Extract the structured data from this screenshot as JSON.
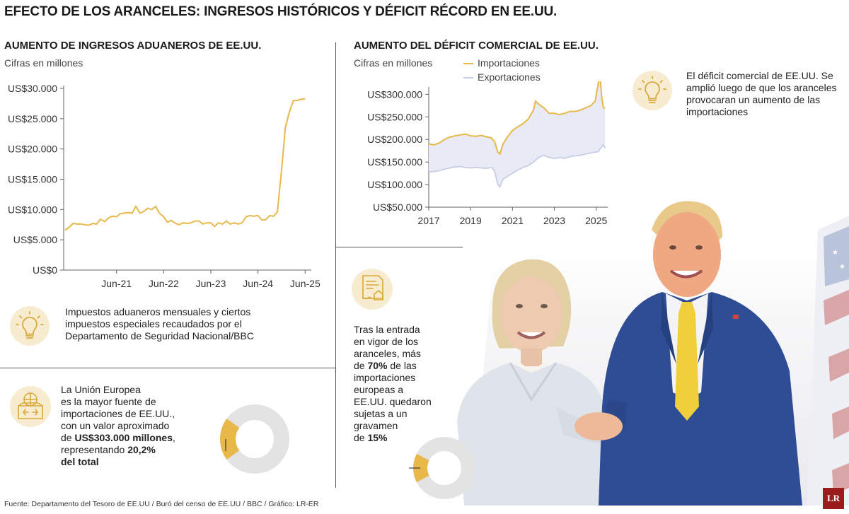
{
  "title": "EFECTO DE LOS ARANCELES: INGRESOS HISTÓRICOS Y DÉFICIT RÉCORD EN EE.UU.",
  "colors": {
    "accent": "#e8b84a",
    "exports_fill": "#e8ebf5",
    "exports_line": "#c8cde6",
    "axis": "#666",
    "ring": "#e3e3e3"
  },
  "left_chart": {
    "title": "AUMENTO DE INGRESOS ADUANEROS DE EE.UU.",
    "subtitle": "Cifras en millones",
    "note": "Impuestos aduaneros mensuales y ciertos impuestos especiales recaudados por el Departamento de Seguridad Nacional/BBC",
    "icon": "lightbulb-icon"
  },
  "right_chart": {
    "title": "AUMENTO DEL DÉFICIT COMERCIAL DE EE.UU.",
    "subtitle": "Cifras en millones",
    "legend_imports": "Importaciones",
    "legend_exports": "Exportaciones",
    "note": "El déficit comercial de EE.UU. Se amplió luego de que los aranceles provocaran un aumento de las importaciones",
    "icon": "lightbulb-icon"
  },
  "eu_box": {
    "icon": "globe-box-icon",
    "line1": "La Unión Europea",
    "line2": "es la mayor fuente de",
    "line3": "importaciones de EE.UU.,",
    "line4": "con un valor aproximado",
    "line5_pre": "de ",
    "line5_bold": "US$303.000 millones",
    "line5_post": ",",
    "line6_pre": "representando ",
    "line6_bold": "20,2%",
    "line7_bold": "del total",
    "share": 0.202
  },
  "tariff_box": {
    "icon": "document-icon",
    "l1": "Tras la entrada",
    "l2": "en vigor de los",
    "l3": "aranceles, más",
    "l4_pre": "de ",
    "l4_bold": "70%",
    "l4_post": " de las",
    "l5": "importaciones",
    "l6": "europeas a",
    "l7": "EE.UU. quedaron",
    "l8": "sujetas a un",
    "l9": "gravamen",
    "l10_pre": "de ",
    "l10_bold": "15%",
    "share": 0.15
  },
  "source": "Fuente: Departamento del Tesoro de EE.UU / Buró del censo de EE.UU / BBC / Gráfico: LR-ER",
  "logo": "LR",
  "chart_data": [
    {
      "type": "line",
      "title": "AUMENTO DE INGRESOS ADUANEROS DE EE.UU.",
      "ylabel": "Cifras en millones",
      "xlim": [
        2020.3,
        2025.55
      ],
      "ylim": [
        0,
        30000
      ],
      "y_ticks": [
        0,
        5000,
        10000,
        15000,
        20000,
        25000,
        30000
      ],
      "y_tick_labels": [
        "US$0",
        "US$5.000",
        "US$10.000",
        "US$15.000",
        "US$20.000",
        "US$25.000",
        "US$30.000"
      ],
      "x_ticks": [
        2021.42,
        2022.42,
        2023.42,
        2024.42,
        2025.42
      ],
      "x_tick_labels": [
        "Jun-21",
        "Jun-22",
        "Jun-23",
        "Jun-24",
        "Jun-25"
      ],
      "series": [
        {
          "color": "#e8b84a",
          "x": [
            2020.33,
            2020.42,
            2020.5,
            2020.58,
            2020.67,
            2020.75,
            2020.83,
            2020.92,
            2021.0,
            2021.08,
            2021.17,
            2021.25,
            2021.33,
            2021.42,
            2021.5,
            2021.58,
            2021.67,
            2021.75,
            2021.83,
            2021.92,
            2022.0,
            2022.08,
            2022.17,
            2022.25,
            2022.33,
            2022.42,
            2022.5,
            2022.58,
            2022.67,
            2022.75,
            2022.83,
            2022.92,
            2023.0,
            2023.08,
            2023.17,
            2023.25,
            2023.33,
            2023.42,
            2023.5,
            2023.58,
            2023.67,
            2023.75,
            2023.83,
            2023.92,
            2024.0,
            2024.08,
            2024.17,
            2024.25,
            2024.33,
            2024.42,
            2024.5,
            2024.58,
            2024.67,
            2024.75,
            2024.83,
            2024.92,
            2025.0,
            2025.08,
            2025.17,
            2025.25,
            2025.33,
            2025.42
          ],
          "y": [
            6600,
            7100,
            7700,
            7600,
            7600,
            7500,
            7400,
            7700,
            7600,
            8400,
            8000,
            8600,
            8900,
            8800,
            9300,
            9400,
            9500,
            9400,
            10500,
            9400,
            9700,
            10200,
            10000,
            10500,
            9400,
            8800,
            7900,
            8200,
            7700,
            7500,
            7800,
            7700,
            7800,
            8100,
            8100,
            7600,
            7800,
            7800,
            7200,
            7800,
            7600,
            8100,
            7600,
            7800,
            7600,
            7800,
            8800,
            9000,
            8900,
            9000,
            8300,
            8300,
            9000,
            8900,
            9600,
            16500,
            23500,
            26000,
            28000,
            28000,
            28200,
            28300
          ]
        }
      ]
    },
    {
      "type": "area",
      "title": "AUMENTO DEL DÉFICIT COMERCIAL DE EE.UU.",
      "ylabel": "Cifras en millones",
      "xlim": [
        2017.0,
        2025.55
      ],
      "ylim": [
        50000,
        310000
      ],
      "y_ticks": [
        50000,
        100000,
        150000,
        200000,
        250000,
        300000
      ],
      "y_tick_labels": [
        "US$50.000",
        "US$100.000",
        "US$150.000",
        "US$200.000",
        "US$250.000",
        "US$300.000"
      ],
      "x_ticks": [
        2017,
        2019,
        2021,
        2023,
        2025
      ],
      "x_tick_labels": [
        "2017",
        "2019",
        "2021",
        "2023",
        "2025"
      ],
      "legend": "top",
      "series": [
        {
          "name": "Importaciones",
          "color": "#e8b84a",
          "x": [
            2017.0,
            2017.25,
            2017.5,
            2017.75,
            2018.0,
            2018.25,
            2018.5,
            2018.75,
            2019.0,
            2019.25,
            2019.5,
            2019.75,
            2020.0,
            2020.15,
            2020.3,
            2020.4,
            2020.55,
            2020.75,
            2021.0,
            2021.25,
            2021.5,
            2021.75,
            2022.0,
            2022.1,
            2022.25,
            2022.5,
            2022.75,
            2023.0,
            2023.25,
            2023.5,
            2023.75,
            2024.0,
            2024.25,
            2024.5,
            2024.75,
            2024.95,
            2025.1,
            2025.17,
            2025.25,
            2025.33,
            2025.42
          ],
          "y": [
            190000,
            188000,
            192000,
            200000,
            205000,
            208000,
            210000,
            212000,
            208000,
            207000,
            209000,
            206000,
            203000,
            195000,
            172000,
            168000,
            190000,
            205000,
            220000,
            228000,
            235000,
            245000,
            265000,
            285000,
            278000,
            270000,
            258000,
            258000,
            255000,
            258000,
            262000,
            262000,
            265000,
            270000,
            275000,
            285000,
            325000,
            345000,
            300000,
            272000,
            268000
          ]
        },
        {
          "name": "Exportaciones",
          "color": "#c8cde6",
          "x": [
            2017.0,
            2017.25,
            2017.5,
            2017.75,
            2018.0,
            2018.25,
            2018.5,
            2018.75,
            2019.0,
            2019.25,
            2019.5,
            2019.75,
            2020.0,
            2020.15,
            2020.3,
            2020.4,
            2020.55,
            2020.75,
            2021.0,
            2021.25,
            2021.5,
            2021.75,
            2022.0,
            2022.25,
            2022.5,
            2022.75,
            2023.0,
            2023.25,
            2023.5,
            2023.75,
            2024.0,
            2024.25,
            2024.5,
            2024.75,
            2024.95,
            2025.1,
            2025.17,
            2025.25,
            2025.33,
            2025.42
          ],
          "y": [
            128000,
            129000,
            131000,
            134000,
            137000,
            139000,
            140000,
            138000,
            137000,
            138000,
            137000,
            136000,
            138000,
            130000,
            100000,
            95000,
            112000,
            118000,
            125000,
            132000,
            138000,
            142000,
            150000,
            160000,
            165000,
            160000,
            158000,
            160000,
            158000,
            162000,
            164000,
            165000,
            168000,
            170000,
            172000,
            173000,
            178000,
            183000,
            188000,
            180000
          ]
        }
      ]
    }
  ]
}
